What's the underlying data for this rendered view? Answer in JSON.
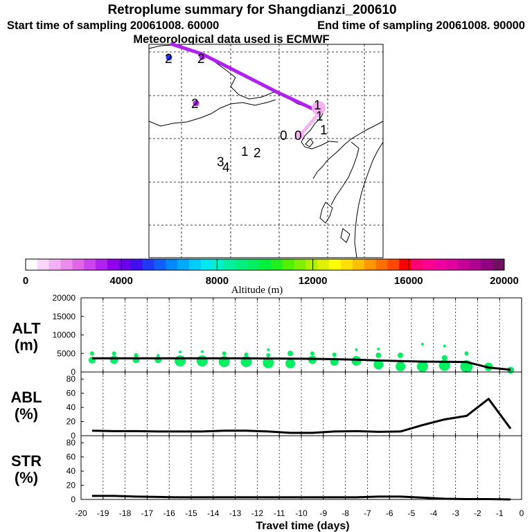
{
  "header": {
    "title": "Retroplume summary for Shangdianzi_200610",
    "start_label": "Start time of sampling 20061008. 60000",
    "end_label": "End time of sampling 20061008. 90000",
    "met_label": "Meteorological data used is ECMWF"
  },
  "colorbar": {
    "title": "Altitude (m)",
    "tick_labels": [
      "0",
      "4000",
      "8000",
      "12000",
      "16000",
      "20000"
    ],
    "colors": [
      "#ffffff",
      "#fbd6fb",
      "#f4b2f4",
      "#ec8cec",
      "#e266e8",
      "#cc44ee",
      "#b020ee",
      "#9000ee",
      "#6c00ee",
      "#4010f0",
      "#2038ff",
      "#1060ff",
      "#0088ff",
      "#00aaff",
      "#00ccff",
      "#00e8f0",
      "#00f0c8",
      "#00f0a0",
      "#00f080",
      "#00f060",
      "#00f040",
      "#20f020",
      "#50f000",
      "#80f000",
      "#b0f000",
      "#e0f000",
      "#ffff00",
      "#ffe000",
      "#ffc000",
      "#ff9800",
      "#ff7000",
      "#ff4800",
      "#ff0000",
      "#ff0070",
      "#ff0090",
      "#f000a0",
      "#e000a0",
      "#c8009a",
      "#b00090",
      "#900080",
      "#701060"
    ]
  },
  "map": {
    "markers": [
      "2",
      "2",
      "2",
      "1",
      "1",
      "1",
      "0",
      "0",
      "1",
      "2",
      "3",
      "4"
    ]
  },
  "chart_data": [
    {
      "type": "line",
      "panel": "ALT",
      "title": "ALT",
      "ylabel_unit": "(m)",
      "ylim": [
        0,
        20000
      ],
      "yticks": [
        "20000",
        "15000",
        "10000",
        "5000",
        "0"
      ],
      "x": [
        -19.5,
        -18.5,
        -17.5,
        -16.5,
        -15.5,
        -14.5,
        -13.5,
        -12.5,
        -11.5,
        -10.5,
        -9.5,
        -8.5,
        -7.5,
        -6.5,
        -5.5,
        -4.5,
        -3.5,
        -2.5,
        -1.5,
        -0.5
      ],
      "values": [
        3700,
        3700,
        3700,
        3700,
        3700,
        3700,
        3700,
        3700,
        3650,
        3600,
        3550,
        3450,
        3300,
        3100,
        2950,
        2800,
        2750,
        2700,
        1200,
        600
      ],
      "scatter": {
        "color": "#00f060",
        "points": [
          {
            "x": -19.5,
            "y": 3200,
            "size": 5
          },
          {
            "x": -19.5,
            "y": 5000,
            "size": 3
          },
          {
            "x": -18.5,
            "y": 3300,
            "size": 6
          },
          {
            "x": -18.5,
            "y": 5000,
            "size": 3
          },
          {
            "x": -17.5,
            "y": 3300,
            "size": 5
          },
          {
            "x": -17.5,
            "y": 4500,
            "size": 3
          },
          {
            "x": -16.5,
            "y": 3300,
            "size": 5
          },
          {
            "x": -16.5,
            "y": 4500,
            "size": 2
          },
          {
            "x": -15.5,
            "y": 3000,
            "size": 8
          },
          {
            "x": -15.5,
            "y": 5400,
            "size": 2
          },
          {
            "x": -14.5,
            "y": 3000,
            "size": 8
          },
          {
            "x": -14.5,
            "y": 5500,
            "size": 2
          },
          {
            "x": -13.5,
            "y": 2800,
            "size": 8
          },
          {
            "x": -13.5,
            "y": 5000,
            "size": 3
          },
          {
            "x": -12.5,
            "y": 2800,
            "size": 8
          },
          {
            "x": -12.5,
            "y": 4700,
            "size": 3
          },
          {
            "x": -11.5,
            "y": 2500,
            "size": 8
          },
          {
            "x": -11.5,
            "y": 4500,
            "size": 3
          },
          {
            "x": -11.5,
            "y": 6000,
            "size": 2
          },
          {
            "x": -10.5,
            "y": 2300,
            "size": 7
          },
          {
            "x": -10.5,
            "y": 5000,
            "size": 4
          },
          {
            "x": -9.5,
            "y": 3300,
            "size": 6
          },
          {
            "x": -9.5,
            "y": 5000,
            "size": 3
          },
          {
            "x": -8.5,
            "y": 2800,
            "size": 6
          },
          {
            "x": -8.5,
            "y": 4700,
            "size": 3
          },
          {
            "x": -7.5,
            "y": 3000,
            "size": 7
          },
          {
            "x": -7.5,
            "y": 6000,
            "size": 2
          },
          {
            "x": -6.5,
            "y": 2000,
            "size": 7
          },
          {
            "x": -6.5,
            "y": 4500,
            "size": 4
          },
          {
            "x": -6.5,
            "y": 6200,
            "size": 2
          },
          {
            "x": -5.5,
            "y": 1500,
            "size": 7
          },
          {
            "x": -5.5,
            "y": 4500,
            "size": 4
          },
          {
            "x": -4.5,
            "y": 1500,
            "size": 8
          },
          {
            "x": -4.5,
            "y": 7500,
            "size": 2
          },
          {
            "x": -3.5,
            "y": 1800,
            "size": 8
          },
          {
            "x": -3.5,
            "y": 3800,
            "size": 4
          },
          {
            "x": -3.5,
            "y": 7000,
            "size": 2
          },
          {
            "x": -2.5,
            "y": 1500,
            "size": 9
          },
          {
            "x": -2.5,
            "y": 5000,
            "size": 3
          },
          {
            "x": -1.5,
            "y": 1400,
            "size": 6
          },
          {
            "x": -0.5,
            "y": 500,
            "size": 5
          }
        ]
      }
    },
    {
      "type": "line",
      "panel": "ABL",
      "title": "ABL",
      "ylabel_unit": "(%)",
      "ylim": [
        0,
        90
      ],
      "yticks": [
        "80",
        "60",
        "40",
        "20",
        "0"
      ],
      "x": [
        -19.5,
        -18.5,
        -17.5,
        -16.5,
        -15.5,
        -14.5,
        -13.5,
        -12.5,
        -11.5,
        -10.5,
        -9.5,
        -8.5,
        -7.5,
        -6.5,
        -5.5,
        -4.5,
        -3.5,
        -2.5,
        -1.5,
        -0.5
      ],
      "values": [
        7,
        6.5,
        6.5,
        6,
        6,
        6,
        7,
        7,
        6,
        4,
        4,
        6,
        6.5,
        5.5,
        6,
        15,
        23,
        28,
        52,
        10
      ]
    },
    {
      "type": "line",
      "panel": "STR",
      "title": "STR",
      "ylabel_unit": "(%)",
      "ylim": [
        0,
        90
      ],
      "yticks": [
        "80",
        "60",
        "40",
        "20",
        "0"
      ],
      "x": [
        -19.5,
        -18.5,
        -17.5,
        -16.5,
        -15.5,
        -14.5,
        -13.5,
        -12.5,
        -11.5,
        -10.5,
        -9.5,
        -8.5,
        -7.5,
        -6.5,
        -5.5,
        -4.5,
        -3.5,
        -2.5,
        -1.5,
        -0.5
      ],
      "values": [
        5,
        5,
        4,
        3.5,
        3,
        3,
        3,
        3,
        3,
        3,
        3,
        3,
        3,
        4,
        4,
        2.5,
        1,
        0.5,
        0.5,
        0
      ],
      "xlabel": "Travel time (days)",
      "xlim": [
        -20,
        0
      ],
      "xticks": [
        "-20",
        "-19",
        "-18",
        "-17",
        "-16",
        "-15",
        "-14",
        "-13",
        "-12",
        "-11",
        "-10",
        "-9",
        "-8",
        "-7",
        "-6",
        "-5",
        "-4",
        "-3",
        "-2",
        "-1",
        "0"
      ]
    }
  ]
}
